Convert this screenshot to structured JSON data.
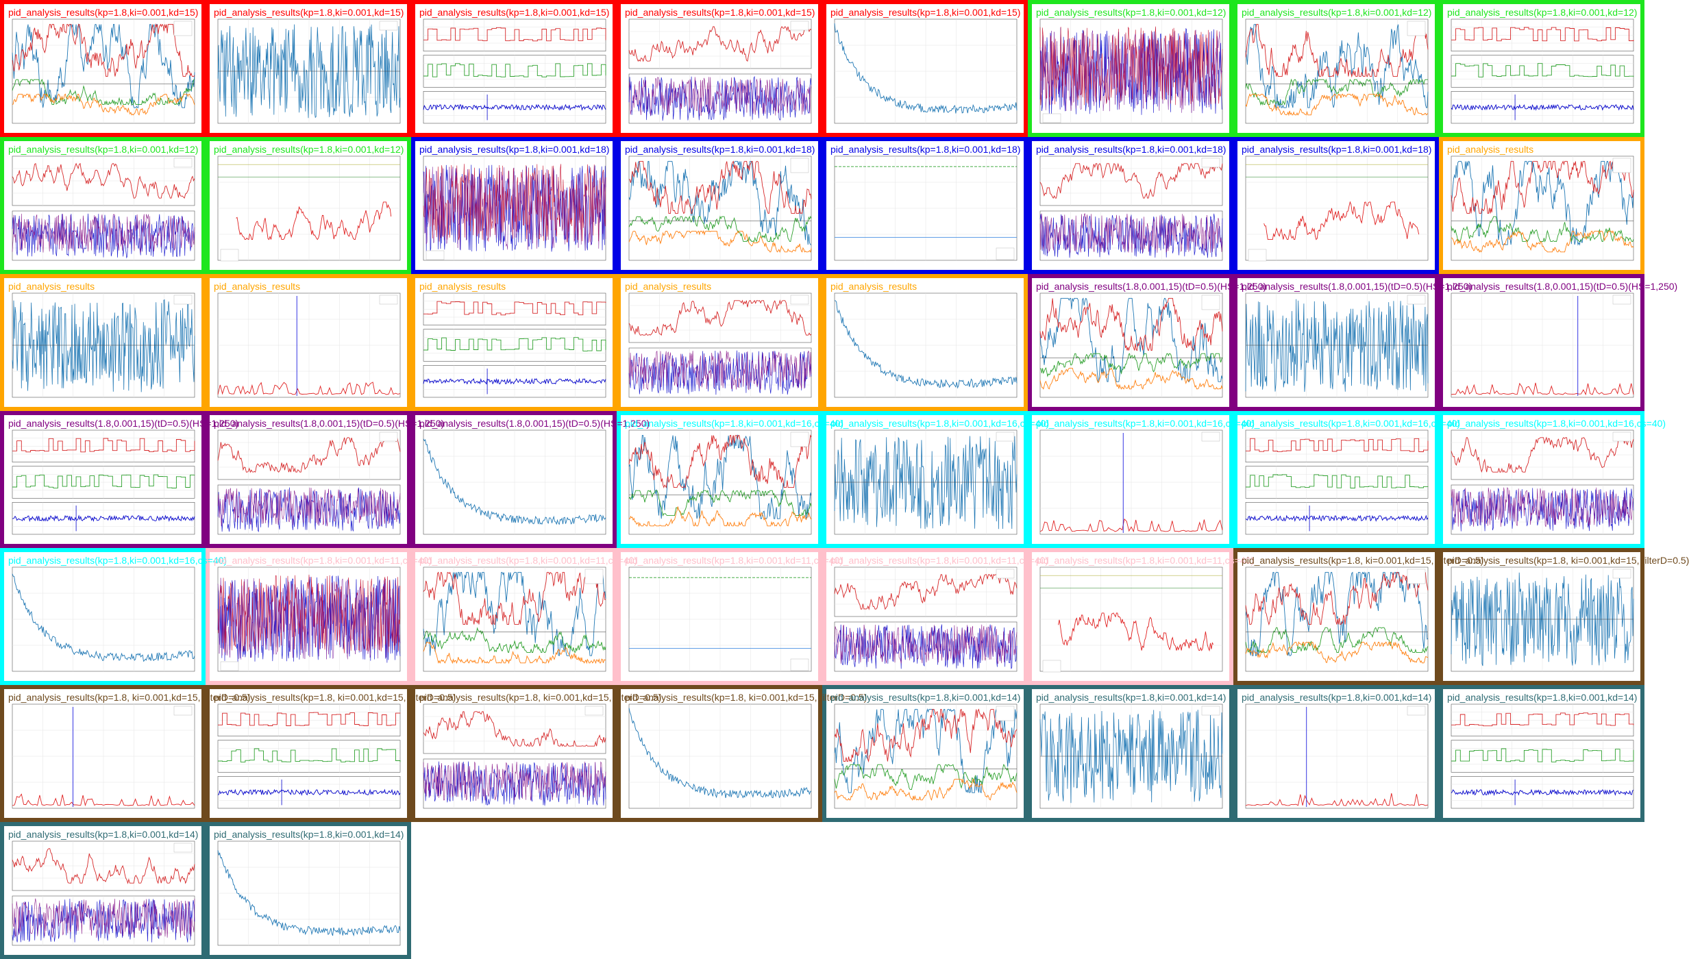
{
  "colors": {
    "red": "#ff0000",
    "green": "#1ee61e",
    "blue": "#0000e6",
    "orange": "#ffa500",
    "purple": "#800080",
    "cyan": "#00ffff",
    "pink": "#ffc0cb",
    "brown": "#6e4a1e",
    "teal": "#2f6b73"
  },
  "thumbnails": [
    {
      "caption": "pid_analysis_results(kp=1.8,ki=0.001,kd=15)",
      "border": "red",
      "kind": "multiline"
    },
    {
      "caption": "pid_analysis_results(kp=1.8,ki=0.001,kd=15)",
      "border": "red",
      "kind": "speed"
    },
    {
      "caption": "pid_analysis_results(kp=1.8,ki=0.001,kd=15)",
      "border": "red",
      "kind": "stack3"
    },
    {
      "caption": "pid_analysis_results(kp=1.8,ki=0.001,kd=15)",
      "border": "red",
      "kind": "redblue"
    },
    {
      "caption": "pid_analysis_results(kp=1.8,ki=0.001,kd=15)",
      "border": "red",
      "kind": "decay"
    },
    {
      "caption": "pid_analysis_results(kp=1.8,ki=0.001,kd=12)",
      "border": "green",
      "kind": "dense"
    },
    {
      "caption": "pid_analysis_results(kp=1.8,ki=0.001,kd=12)",
      "border": "green",
      "kind": "multiline"
    },
    {
      "caption": "pid_analysis_results(kp=1.8,ki=0.001,kd=12)",
      "border": "green",
      "kind": "stack3"
    },
    {
      "caption": "pid_analysis_results(kp=1.8,ki=0.001,kd=12)",
      "border": "green",
      "kind": "redblue"
    },
    {
      "caption": "pid_analysis_results(kp=1.8,ki=0.001,kd=12)",
      "border": "green",
      "kind": "redline"
    },
    {
      "caption": "pid_analysis_results(kp=1.8,ki=0.001,kd=18)",
      "border": "blue",
      "kind": "dense"
    },
    {
      "caption": "pid_analysis_results(kp=1.8,ki=0.001,kd=18)",
      "border": "blue",
      "kind": "multiline"
    },
    {
      "caption": "pid_analysis_results(kp=1.8,ki=0.001,kd=18)",
      "border": "blue",
      "kind": "flat"
    },
    {
      "caption": "pid_analysis_results(kp=1.8,ki=0.001,kd=18)",
      "border": "blue",
      "kind": "redblue"
    },
    {
      "caption": "pid_analysis_results(kp=1.8,ki=0.001,kd=18)",
      "border": "blue",
      "kind": "redline"
    },
    {
      "caption": "pid_analysis_results",
      "border": "orange",
      "kind": "multiline"
    },
    {
      "caption": "pid_analysis_results",
      "border": "orange",
      "kind": "speed"
    },
    {
      "caption": "pid_analysis_results",
      "border": "orange",
      "kind": "spike"
    },
    {
      "caption": "pid_analysis_results",
      "border": "orange",
      "kind": "stack3"
    },
    {
      "caption": "pid_analysis_results",
      "border": "orange",
      "kind": "redblue"
    },
    {
      "caption": "pid_analysis_results",
      "border": "orange",
      "kind": "decay"
    },
    {
      "caption": "pid_analysis_results(1.8,0.001,15)(tD=0.5)(HS=1,250)",
      "border": "purple",
      "kind": "multiline"
    },
    {
      "caption": "pid_analysis_results(1.8,0.001,15)(tD=0.5)(HS=1,250)",
      "border": "purple",
      "kind": "speed"
    },
    {
      "caption": "pid_analysis_results(1.8,0.001,15)(tD=0.5)(HS=1,250)",
      "border": "purple",
      "kind": "spike"
    },
    {
      "caption": "pid_analysis_results(1.8,0.001,15)(tD=0.5)(HS=1,250)",
      "border": "purple",
      "kind": "stack3"
    },
    {
      "caption": "pid_analysis_results(1.8,0.001,15)(tD=0.5)(HS=1,250)",
      "border": "purple",
      "kind": "redblue"
    },
    {
      "caption": "pid_analysis_results(1.8,0.001,15)(tD=0.5)(HS=1,250)",
      "border": "purple",
      "kind": "decay"
    },
    {
      "caption": "pid_analysis_results(kp=1.8,ki=0.001,kd=16,cs=40)",
      "border": "cyan",
      "kind": "multiline"
    },
    {
      "caption": "pid_analysis_results(kp=1.8,ki=0.001,kd=16,cs=40)",
      "border": "cyan",
      "kind": "speed"
    },
    {
      "caption": "pid_analysis_results(kp=1.8,ki=0.001,kd=16,cs=40)",
      "border": "cyan",
      "kind": "spike"
    },
    {
      "caption": "pid_analysis_results(kp=1.8,ki=0.001,kd=16,cs=40)",
      "border": "cyan",
      "kind": "stack3"
    },
    {
      "caption": "pid_analysis_results(kp=1.8,ki=0.001,kd=16,cs=40)",
      "border": "cyan",
      "kind": "redblue"
    },
    {
      "caption": "pid_analysis_results(kp=1.8,ki=0.001,kd=16,cs=40)",
      "border": "cyan",
      "kind": "decay"
    },
    {
      "caption": "pid_analysis_results(kp=1.8,ki=0.001,kd=11,cs=40)",
      "border": "pink",
      "kind": "dense"
    },
    {
      "caption": "pid_analysis_results(kp=1.8,ki=0.001,kd=11,cs=40)",
      "border": "pink",
      "kind": "multiline"
    },
    {
      "caption": "pid_analysis_results(kp=1.8,ki=0.001,kd=11,cs=40)",
      "border": "pink",
      "kind": "flat"
    },
    {
      "caption": "pid_analysis_results(kp=1.8,ki=0.001,kd=11,cs=40)",
      "border": "pink",
      "kind": "redblue"
    },
    {
      "caption": "pid_analysis_results(kp=1.8,ki=0.001,kd=11,cs=40)",
      "border": "pink",
      "kind": "redline"
    },
    {
      "caption": "pid_analysis_results(kp=1.8, ki=0.001,kd=15, filterD=0.5)",
      "border": "brown",
      "kind": "multiline"
    },
    {
      "caption": "pid_analysis_results(kp=1.8, ki=0.001,kd=15, filterD=0.5)",
      "border": "brown",
      "kind": "speed"
    },
    {
      "caption": "pid_analysis_results(kp=1.8, ki=0.001,kd=15, filterD=0.5)",
      "border": "brown",
      "kind": "spike"
    },
    {
      "caption": "pid_analysis_results(kp=1.8, ki=0.001,kd=15, filterD=0.5)",
      "border": "brown",
      "kind": "stack3"
    },
    {
      "caption": "pid_analysis_results(kp=1.8, ki=0.001,kd=15, filterD=0.5)",
      "border": "brown",
      "kind": "redblue"
    },
    {
      "caption": "pid_analysis_results(kp=1.8, ki=0.001,kd=15, filterD=0.5)",
      "border": "brown",
      "kind": "decay"
    },
    {
      "caption": "pid_analysis_results(kp=1.8,ki=0.001,kd=14)",
      "border": "teal",
      "kind": "multiline"
    },
    {
      "caption": "pid_analysis_results(kp=1.8,ki=0.001,kd=14)",
      "border": "teal",
      "kind": "speed"
    },
    {
      "caption": "pid_analysis_results(kp=1.8,ki=0.001,kd=14)",
      "border": "teal",
      "kind": "spike"
    },
    {
      "caption": "pid_analysis_results(kp=1.8,ki=0.001,kd=14)",
      "border": "teal",
      "kind": "stack3"
    },
    {
      "caption": "pid_analysis_results(kp=1.8,ki=0.001,kd=14)",
      "border": "teal",
      "kind": "redblue"
    },
    {
      "caption": "pid_analysis_results(kp=1.8,ki=0.001,kd=14)",
      "border": "teal",
      "kind": "decay"
    }
  ]
}
